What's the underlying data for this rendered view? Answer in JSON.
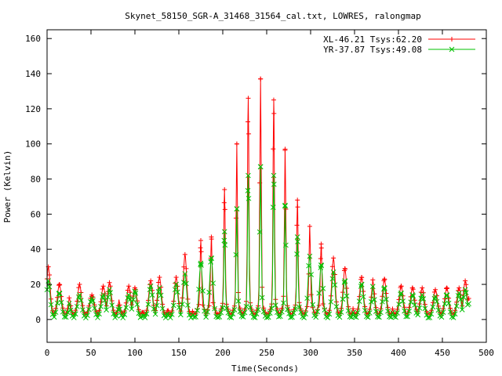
{
  "chart_data": {
    "type": "line",
    "title": "Skynet_58150_SGR-A_31468_31564_cal.txt, LOWRES, ralongmap",
    "xlabel": "Time(Seconds)",
    "ylabel": "Power (Kelvin)",
    "xlim": [
      0,
      500
    ],
    "ylim": [
      -13,
      165
    ],
    "xticks": [
      0,
      50,
      100,
      150,
      200,
      250,
      300,
      350,
      400,
      450,
      500
    ],
    "yticks": [
      0,
      20,
      40,
      60,
      80,
      100,
      120,
      140,
      160
    ],
    "grid": false,
    "legend_position": "top-right",
    "series": [
      {
        "name": "XL-46.21 Tsys:62.20",
        "color": "#ff0000",
        "marker": "plus",
        "baseline": 8,
        "period": 13.55,
        "peaks": [
          {
            "t": 1.5,
            "v": 30
          },
          {
            "t": 14,
            "v": 20
          },
          {
            "t": 37,
            "v": 20
          },
          {
            "t": 51,
            "v": 14
          },
          {
            "t": 64,
            "v": 19
          },
          {
            "t": 71,
            "v": 21
          },
          {
            "t": 93,
            "v": 19
          },
          {
            "t": 100,
            "v": 18
          },
          {
            "t": 118,
            "v": 22
          },
          {
            "t": 128,
            "v": 24
          },
          {
            "t": 147,
            "v": 24
          },
          {
            "t": 157,
            "v": 37
          },
          {
            "t": 175,
            "v": 45
          },
          {
            "t": 187,
            "v": 47
          },
          {
            "t": 202,
            "v": 74
          },
          {
            "t": 216,
            "v": 100
          },
          {
            "t": 229,
            "v": 126
          },
          {
            "t": 243,
            "v": 137
          },
          {
            "t": 258,
            "v": 125
          },
          {
            "t": 271,
            "v": 97
          },
          {
            "t": 285,
            "v": 68
          },
          {
            "t": 299,
            "v": 53
          },
          {
            "t": 312,
            "v": 43
          },
          {
            "t": 326,
            "v": 35
          },
          {
            "t": 339,
            "v": 29
          },
          {
            "t": 358,
            "v": 24
          },
          {
            "t": 384,
            "v": 23
          },
          {
            "t": 403,
            "v": 19
          },
          {
            "t": 416,
            "v": 18
          },
          {
            "t": 427,
            "v": 18
          },
          {
            "t": 442,
            "v": 17
          },
          {
            "t": 455,
            "v": 18
          },
          {
            "t": 469,
            "v": 18
          },
          {
            "t": 476,
            "v": 22
          },
          {
            "t": 480,
            "v": 12
          }
        ]
      },
      {
        "name": "YR-37.87 Tsys:49.08",
        "color": "#00c000",
        "marker": "x",
        "baseline": 6,
        "period": 13.55,
        "peaks": [
          {
            "t": 1.5,
            "v": 22
          },
          {
            "t": 14,
            "v": 15
          },
          {
            "t": 37,
            "v": 14
          },
          {
            "t": 51,
            "v": 12
          },
          {
            "t": 64,
            "v": 14
          },
          {
            "t": 71,
            "v": 17
          },
          {
            "t": 93,
            "v": 14
          },
          {
            "t": 100,
            "v": 16
          },
          {
            "t": 118,
            "v": 19
          },
          {
            "t": 128,
            "v": 18
          },
          {
            "t": 147,
            "v": 20
          },
          {
            "t": 157,
            "v": 26
          },
          {
            "t": 175,
            "v": 32
          },
          {
            "t": 187,
            "v": 35
          },
          {
            "t": 202,
            "v": 50
          },
          {
            "t": 216,
            "v": 63
          },
          {
            "t": 229,
            "v": 82
          },
          {
            "t": 243,
            "v": 87
          },
          {
            "t": 258,
            "v": 82
          },
          {
            "t": 271,
            "v": 65
          },
          {
            "t": 285,
            "v": 47
          },
          {
            "t": 299,
            "v": 36
          },
          {
            "t": 312,
            "v": 31
          },
          {
            "t": 326,
            "v": 27
          },
          {
            "t": 339,
            "v": 22
          },
          {
            "t": 358,
            "v": 20
          },
          {
            "t": 384,
            "v": 18
          },
          {
            "t": 403,
            "v": 15
          },
          {
            "t": 416,
            "v": 14
          },
          {
            "t": 427,
            "v": 14
          },
          {
            "t": 442,
            "v": 13
          },
          {
            "t": 455,
            "v": 14
          },
          {
            "t": 469,
            "v": 15
          },
          {
            "t": 476,
            "v": 17
          },
          {
            "t": 480,
            "v": 9
          }
        ]
      }
    ]
  }
}
